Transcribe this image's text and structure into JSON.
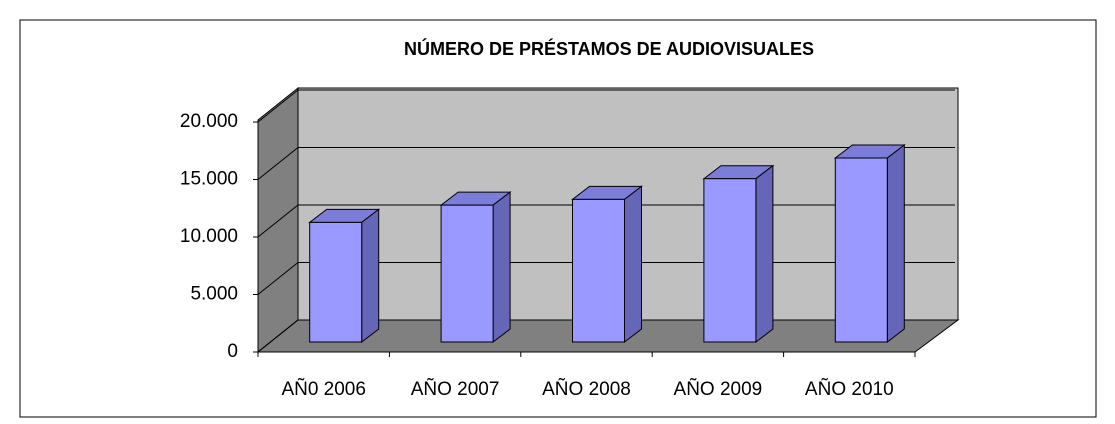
{
  "chart_data": {
    "type": "bar",
    "title": "NÚMERO DE PRÉSTAMOS DE AUDIOVISUALES",
    "categories": [
      "AÑ0 2006",
      "AÑO 2007",
      "AÑO 2008",
      "AÑO 2009",
      "AÑO 2010"
    ],
    "values": [
      10400,
      11900,
      12400,
      14200,
      16000
    ],
    "color": "#9999ff",
    "ylim": [
      0,
      20000
    ],
    "yticks": [
      0,
      {
        "value": 5000,
        "label": "5.000"
      },
      {
        "value": 10000,
        "label": "10.000"
      },
      {
        "value": 15000,
        "label": "15.000"
      },
      {
        "value": 20000,
        "label": "20.000"
      }
    ],
    "grid": true
  }
}
